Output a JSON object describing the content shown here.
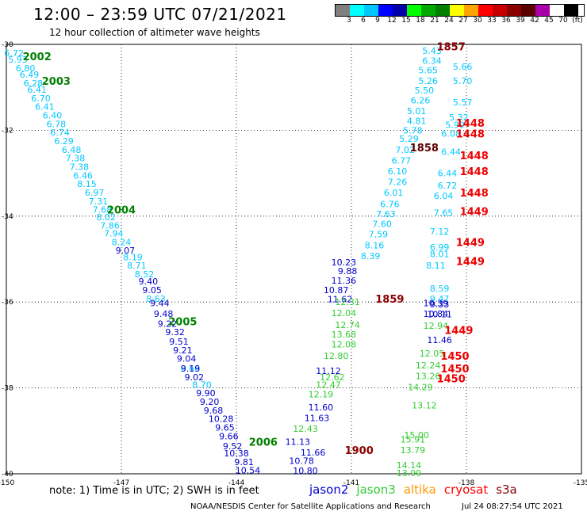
{
  "header": {
    "title": "12:00 – 23:59 UTC 07/21/2021",
    "subtitle": "12 hour collection of altimeter wave heights"
  },
  "color_scale": {
    "colors": [
      "#7f7f7f",
      "#00ffff",
      "#00c8ff",
      "#0000ff",
      "#0000aa",
      "#00ff00",
      "#00aa00",
      "#008000",
      "#ffff00",
      "#ffa500",
      "#ff0000",
      "#c80000",
      "#8b0000",
      "#5a0000",
      "#aa00aa",
      "#ffffff",
      "#000000"
    ],
    "labels": [
      "3",
      "6",
      "9",
      "12",
      "15",
      "18",
      "21",
      "24",
      "27",
      "30",
      "33",
      "36",
      "39",
      "42",
      "45",
      "70",
      "(ft)"
    ]
  },
  "chart_data": {
    "type": "scatter",
    "xlim": [
      -150,
      -135
    ],
    "ylim": [
      -40,
      -30
    ],
    "x_ticks": [
      "-150",
      "-147",
      "-144",
      "-141",
      "-138",
      "-135"
    ],
    "y_ticks": [
      "-30",
      "-32",
      "-34",
      "-36",
      "-38",
      "-40"
    ],
    "grid": "dotted at -147, -144, -141, -138 and -32, -34, -36, -38",
    "series": [
      {
        "name": "jason2",
        "color": "#0000cc",
        "labels": [
          {
            "text": "10.23",
            "lon": -141.2,
            "lat": -35.07
          },
          {
            "text": "9.88",
            "lon": -141.1,
            "lat": -35.28
          },
          {
            "text": "11.36",
            "lon": -141.2,
            "lat": -35.5
          },
          {
            "text": "10.87",
            "lon": -141.4,
            "lat": -35.72
          },
          {
            "text": "11.62",
            "lon": -141.3,
            "lat": -35.93
          },
          {
            "text": "11.12",
            "lon": -141.6,
            "lat": -37.6
          },
          {
            "text": "11.60",
            "lon": -141.8,
            "lat": -38.45
          },
          {
            "text": "11.63",
            "lon": -141.9,
            "lat": -38.7
          },
          {
            "text": "11.13",
            "lon": -142.4,
            "lat": -39.25
          },
          {
            "text": "11.66",
            "lon": -142.0,
            "lat": -39.5
          },
          {
            "text": "10.78",
            "lon": -142.3,
            "lat": -39.7
          },
          {
            "text": "10.80",
            "lon": -142.2,
            "lat": -39.93
          },
          {
            "text": "10.39",
            "lon": -138.8,
            "lat": -36.02
          },
          {
            "text": "10.84",
            "lon": -138.8,
            "lat": -36.27
          },
          {
            "text": "11.46",
            "lon": -138.7,
            "lat": -36.88
          }
        ]
      },
      {
        "name": "jason3",
        "color": "#33cc33",
        "labels": [
          {
            "text": "12.31",
            "lon": -141.1,
            "lat": -36.0
          },
          {
            "text": "12.04",
            "lon": -141.2,
            "lat": -36.25
          },
          {
            "text": "12.74",
            "lon": -141.1,
            "lat": -36.53
          },
          {
            "text": "13.68",
            "lon": -141.2,
            "lat": -36.75
          },
          {
            "text": "12.08",
            "lon": -141.2,
            "lat": -36.98
          },
          {
            "text": "12.80",
            "lon": -141.4,
            "lat": -37.25
          },
          {
            "text": "12.62",
            "lon": -141.5,
            "lat": -37.75
          },
          {
            "text": "12.47",
            "lon": -141.6,
            "lat": -37.92
          },
          {
            "text": "12.19",
            "lon": -141.8,
            "lat": -38.15
          },
          {
            "text": "12.43",
            "lon": -142.2,
            "lat": -38.95
          },
          {
            "text": "12.94",
            "lon": -138.8,
            "lat": -36.55
          },
          {
            "text": "12.05",
            "lon": -138.9,
            "lat": -37.2
          },
          {
            "text": "12.24",
            "lon": -139.0,
            "lat": -37.47
          },
          {
            "text": "13.26",
            "lon": -139.0,
            "lat": -37.72
          },
          {
            "text": "14.29",
            "lon": -139.2,
            "lat": -37.98
          },
          {
            "text": "13.12",
            "lon": -139.1,
            "lat": -38.4
          },
          {
            "text": "15.00",
            "lon": -139.3,
            "lat": -39.1
          },
          {
            "text": "15.91",
            "lon": -139.4,
            "lat": -39.2
          },
          {
            "text": "13.79",
            "lon": -139.4,
            "lat": -39.45
          },
          {
            "text": "14.14",
            "lon": -139.5,
            "lat": -39.8
          },
          {
            "text": "13.99",
            "lon": -139.5,
            "lat": -39.98
          }
        ]
      },
      {
        "name": "altika",
        "color": "#00c8ff",
        "labels": [
          {
            "text": "6.72",
            "lon": -149.8,
            "lat": -30.2
          },
          {
            "text": "5.93",
            "lon": -149.7,
            "lat": -30.35
          },
          {
            "text": "6.80",
            "lon": -149.5,
            "lat": -30.55
          },
          {
            "text": "6.49",
            "lon": -149.4,
            "lat": -30.7
          },
          {
            "text": "6.28",
            "lon": -149.3,
            "lat": -30.9
          },
          {
            "text": "6.41",
            "lon": -149.2,
            "lat": -31.05
          },
          {
            "text": "6.70",
            "lon": -149.1,
            "lat": -31.25
          },
          {
            "text": "6.41",
            "lon": -149.0,
            "lat": -31.45
          },
          {
            "text": "6.40",
            "lon": -148.8,
            "lat": -31.65
          },
          {
            "text": "6.78",
            "lon": -148.7,
            "lat": -31.85
          },
          {
            "text": "6.74",
            "lon": -148.6,
            "lat": -32.05
          },
          {
            "text": "6.29",
            "lon": -148.5,
            "lat": -32.25
          },
          {
            "text": "6.48",
            "lon": -148.3,
            "lat": -32.45
          },
          {
            "text": "7.38",
            "lon": -148.2,
            "lat": -32.65
          },
          {
            "text": "7.38",
            "lon": -148.1,
            "lat": -32.85
          },
          {
            "text": "6.46",
            "lon": -148.0,
            "lat": -33.05
          },
          {
            "text": "8.15",
            "lon": -147.9,
            "lat": -33.25
          },
          {
            "text": "6.97",
            "lon": -147.7,
            "lat": -33.45
          },
          {
            "text": "7.31",
            "lon": -147.6,
            "lat": -33.65
          },
          {
            "text": "7.68",
            "lon": -147.5,
            "lat": -33.85
          },
          {
            "text": "8.02",
            "lon": -147.4,
            "lat": -34.02
          },
          {
            "text": "7.86",
            "lon": -147.3,
            "lat": -34.22
          },
          {
            "text": "7.94",
            "lon": -147.2,
            "lat": -34.4
          },
          {
            "text": "8.24",
            "lon": -147.0,
            "lat": -34.6
          },
          {
            "text": "8.19",
            "lon": -146.7,
            "lat": -34.95
          },
          {
            "text": "8.71",
            "lon": -146.6,
            "lat": -35.15
          },
          {
            "text": "8.52",
            "lon": -146.4,
            "lat": -35.35
          },
          {
            "text": "8.63",
            "lon": -146.1,
            "lat": -35.92
          },
          {
            "text": "8.66",
            "lon": -145.2,
            "lat": -37.55
          },
          {
            "text": "8.70",
            "lon": -144.9,
            "lat": -37.92
          },
          {
            "text": "5.43",
            "lon": -138.9,
            "lat": -30.15
          },
          {
            "text": "6.34",
            "lon": -138.9,
            "lat": -30.38
          },
          {
            "text": "5.65",
            "lon": -139.0,
            "lat": -30.6
          },
          {
            "text": "5.26",
            "lon": -139.0,
            "lat": -30.85
          },
          {
            "text": "5.50",
            "lon": -139.1,
            "lat": -31.07
          },
          {
            "text": "6.26",
            "lon": -139.2,
            "lat": -31.3
          },
          {
            "text": "5.01",
            "lon": -139.3,
            "lat": -31.55
          },
          {
            "text": "4.81",
            "lon": -139.3,
            "lat": -31.78
          },
          {
            "text": "5.78",
            "lon": -139.4,
            "lat": -32.0
          },
          {
            "text": "5.29",
            "lon": -139.5,
            "lat": -32.2
          },
          {
            "text": "7.02",
            "lon": -139.6,
            "lat": -32.45
          },
          {
            "text": "6.77",
            "lon": -139.7,
            "lat": -32.7
          },
          {
            "text": "6.10",
            "lon": -139.8,
            "lat": -32.95
          },
          {
            "text": "7.26",
            "lon": -139.8,
            "lat": -33.2
          },
          {
            "text": "6.01",
            "lon": -139.9,
            "lat": -33.45
          },
          {
            "text": "6.76",
            "lon": -140.0,
            "lat": -33.72
          },
          {
            "text": "7.63",
            "lon": -140.1,
            "lat": -33.95
          },
          {
            "text": "7.60",
            "lon": -140.2,
            "lat": -34.18
          },
          {
            "text": "7.59",
            "lon": -140.3,
            "lat": -34.42
          },
          {
            "text": "8.16",
            "lon": -140.4,
            "lat": -34.68
          },
          {
            "text": "8.39",
            "lon": -140.5,
            "lat": -34.93
          },
          {
            "text": "5.66",
            "lon": -138.1,
            "lat": -30.52
          },
          {
            "text": "5.70",
            "lon": -138.1,
            "lat": -30.85
          },
          {
            "text": "5.57",
            "lon": -138.1,
            "lat": -31.35
          },
          {
            "text": "5.32",
            "lon": -138.2,
            "lat": -31.7
          },
          {
            "text": "5.99",
            "lon": -138.3,
            "lat": -31.87
          },
          {
            "text": "6.08",
            "lon": -138.4,
            "lat": -32.08
          },
          {
            "text": "6.44",
            "lon": -138.4,
            "lat": -32.5
          },
          {
            "text": "6.44",
            "lon": -138.5,
            "lat": -33.0
          },
          {
            "text": "6.72",
            "lon": -138.5,
            "lat": -33.28
          },
          {
            "text": "6.04",
            "lon": -138.6,
            "lat": -33.52
          },
          {
            "text": "7.65",
            "lon": -138.6,
            "lat": -33.92
          },
          {
            "text": "7.12",
            "lon": -138.7,
            "lat": -34.35
          },
          {
            "text": "6.99",
            "lon": -138.7,
            "lat": -34.72
          },
          {
            "text": "8.01",
            "lon": -138.7,
            "lat": -34.88
          },
          {
            "text": "8.11",
            "lon": -138.8,
            "lat": -35.15
          },
          {
            "text": "8.59",
            "lon": -138.7,
            "lat": -35.68
          },
          {
            "text": "9.47",
            "lon": -138.7,
            "lat": -35.92
          }
        ]
      },
      {
        "name": "cryosat",
        "color": "#0000cc",
        "labels": [
          {
            "text": "9.07",
            "lon": -146.9,
            "lat": -34.8
          },
          {
            "text": "9.40",
            "lon": -146.3,
            "lat": -35.52
          },
          {
            "text": "9.05",
            "lon": -146.2,
            "lat": -35.72
          },
          {
            "text": "9.44",
            "lon": -146.0,
            "lat": -36.02
          },
          {
            "text": "9.48",
            "lon": -145.9,
            "lat": -36.27
          },
          {
            "text": "9.22",
            "lon": -145.8,
            "lat": -36.5
          },
          {
            "text": "9.32",
            "lon": -145.6,
            "lat": -36.7
          },
          {
            "text": "9.51",
            "lon": -145.5,
            "lat": -36.92
          },
          {
            "text": "9.21",
            "lon": -145.4,
            "lat": -37.12
          },
          {
            "text": "9.04",
            "lon": -145.3,
            "lat": -37.32
          },
          {
            "text": "9.19",
            "lon": -145.2,
            "lat": -37.55
          },
          {
            "text": "9.02",
            "lon": -145.1,
            "lat": -37.75
          },
          {
            "text": "9.90",
            "lon": -144.8,
            "lat": -38.12
          },
          {
            "text": "9.20",
            "lon": -144.7,
            "lat": -38.32
          },
          {
            "text": "9.68",
            "lon": -144.6,
            "lat": -38.52
          },
          {
            "text": "10.28",
            "lon": -144.4,
            "lat": -38.72
          },
          {
            "text": "9.65",
            "lon": -144.3,
            "lat": -38.92
          },
          {
            "text": "9.66",
            "lon": -144.2,
            "lat": -39.12
          },
          {
            "text": "9.52",
            "lon": -144.1,
            "lat": -39.35
          },
          {
            "text": "10.38",
            "lon": -144.0,
            "lat": -39.52
          },
          {
            "text": "9.81",
            "lon": -143.8,
            "lat": -39.72
          },
          {
            "text": "10.54",
            "lon": -143.7,
            "lat": -39.92
          },
          {
            "text": "9.33",
            "lon": -138.7,
            "lat": -36.05
          },
          {
            "text": "10.11",
            "lon": -138.7,
            "lat": -36.28
          }
        ]
      }
    ],
    "time_labels": [
      {
        "text": "2002",
        "lon": -149.2,
        "lat": -30.28,
        "color": "#008000"
      },
      {
        "text": "2003",
        "lon": -148.7,
        "lat": -30.85,
        "color": "#008000"
      },
      {
        "text": "2004",
        "lon": -147.0,
        "lat": -33.85,
        "color": "#008000"
      },
      {
        "text": "2005",
        "lon": -145.4,
        "lat": -36.45,
        "color": "#008000"
      },
      {
        "text": "2006",
        "lon": -143.3,
        "lat": -39.25,
        "color": "#008000"
      },
      {
        "text": "1857",
        "lon": -138.4,
        "lat": -30.05,
        "color": "#8b0000"
      },
      {
        "text": "1858",
        "lon": -139.1,
        "lat": -32.4,
        "color": "#5a0000"
      },
      {
        "text": "1859",
        "lon": -140.0,
        "lat": -35.92,
        "color": "#8b0000"
      },
      {
        "text": "1900",
        "lon": -140.8,
        "lat": -39.45,
        "color": "#8b0000"
      },
      {
        "text": "1448",
        "lon": -137.9,
        "lat": -31.83,
        "color": "#ee0000"
      },
      {
        "text": "1448",
        "lon": -137.9,
        "lat": -32.08,
        "color": "#ee0000"
      },
      {
        "text": "1448",
        "lon": -137.8,
        "lat": -32.58,
        "color": "#ee0000"
      },
      {
        "text": "1448",
        "lon": -137.8,
        "lat": -32.95,
        "color": "#ee0000"
      },
      {
        "text": "1448",
        "lon": -137.8,
        "lat": -33.45,
        "color": "#ee0000"
      },
      {
        "text": "1449",
        "lon": -137.8,
        "lat": -33.88,
        "color": "#ee0000"
      },
      {
        "text": "1449",
        "lon": -137.9,
        "lat": -34.6,
        "color": "#ee0000"
      },
      {
        "text": "1449",
        "lon": -137.9,
        "lat": -35.05,
        "color": "#ee0000"
      },
      {
        "text": "1449",
        "lon": -138.2,
        "lat": -36.65,
        "color": "#ee0000"
      },
      {
        "text": "1450",
        "lon": -138.3,
        "lat": -37.25,
        "color": "#ee0000"
      },
      {
        "text": "1450",
        "lon": -138.3,
        "lat": -37.55,
        "color": "#ee0000"
      },
      {
        "text": "1450",
        "lon": -138.4,
        "lat": -37.78,
        "color": "#ee0000"
      }
    ]
  },
  "footer": {
    "note": "note:  1) Time is in UTC;  2) SWH is in feet",
    "satellites": [
      {
        "name": "jason2",
        "color": "#0000cc"
      },
      {
        "name": "jason3",
        "color": "#33cc33"
      },
      {
        "name": "altika",
        "color": "#ff9900"
      },
      {
        "name": "cryosat",
        "color": "#ff0000"
      },
      {
        "name": "s3a",
        "color": "#8b0000"
      }
    ],
    "credit": "NOAA/NESDIS Center for Satellite Applications and Research",
    "timestamp": "Jul 24 08:27:54 UTC 2021"
  }
}
